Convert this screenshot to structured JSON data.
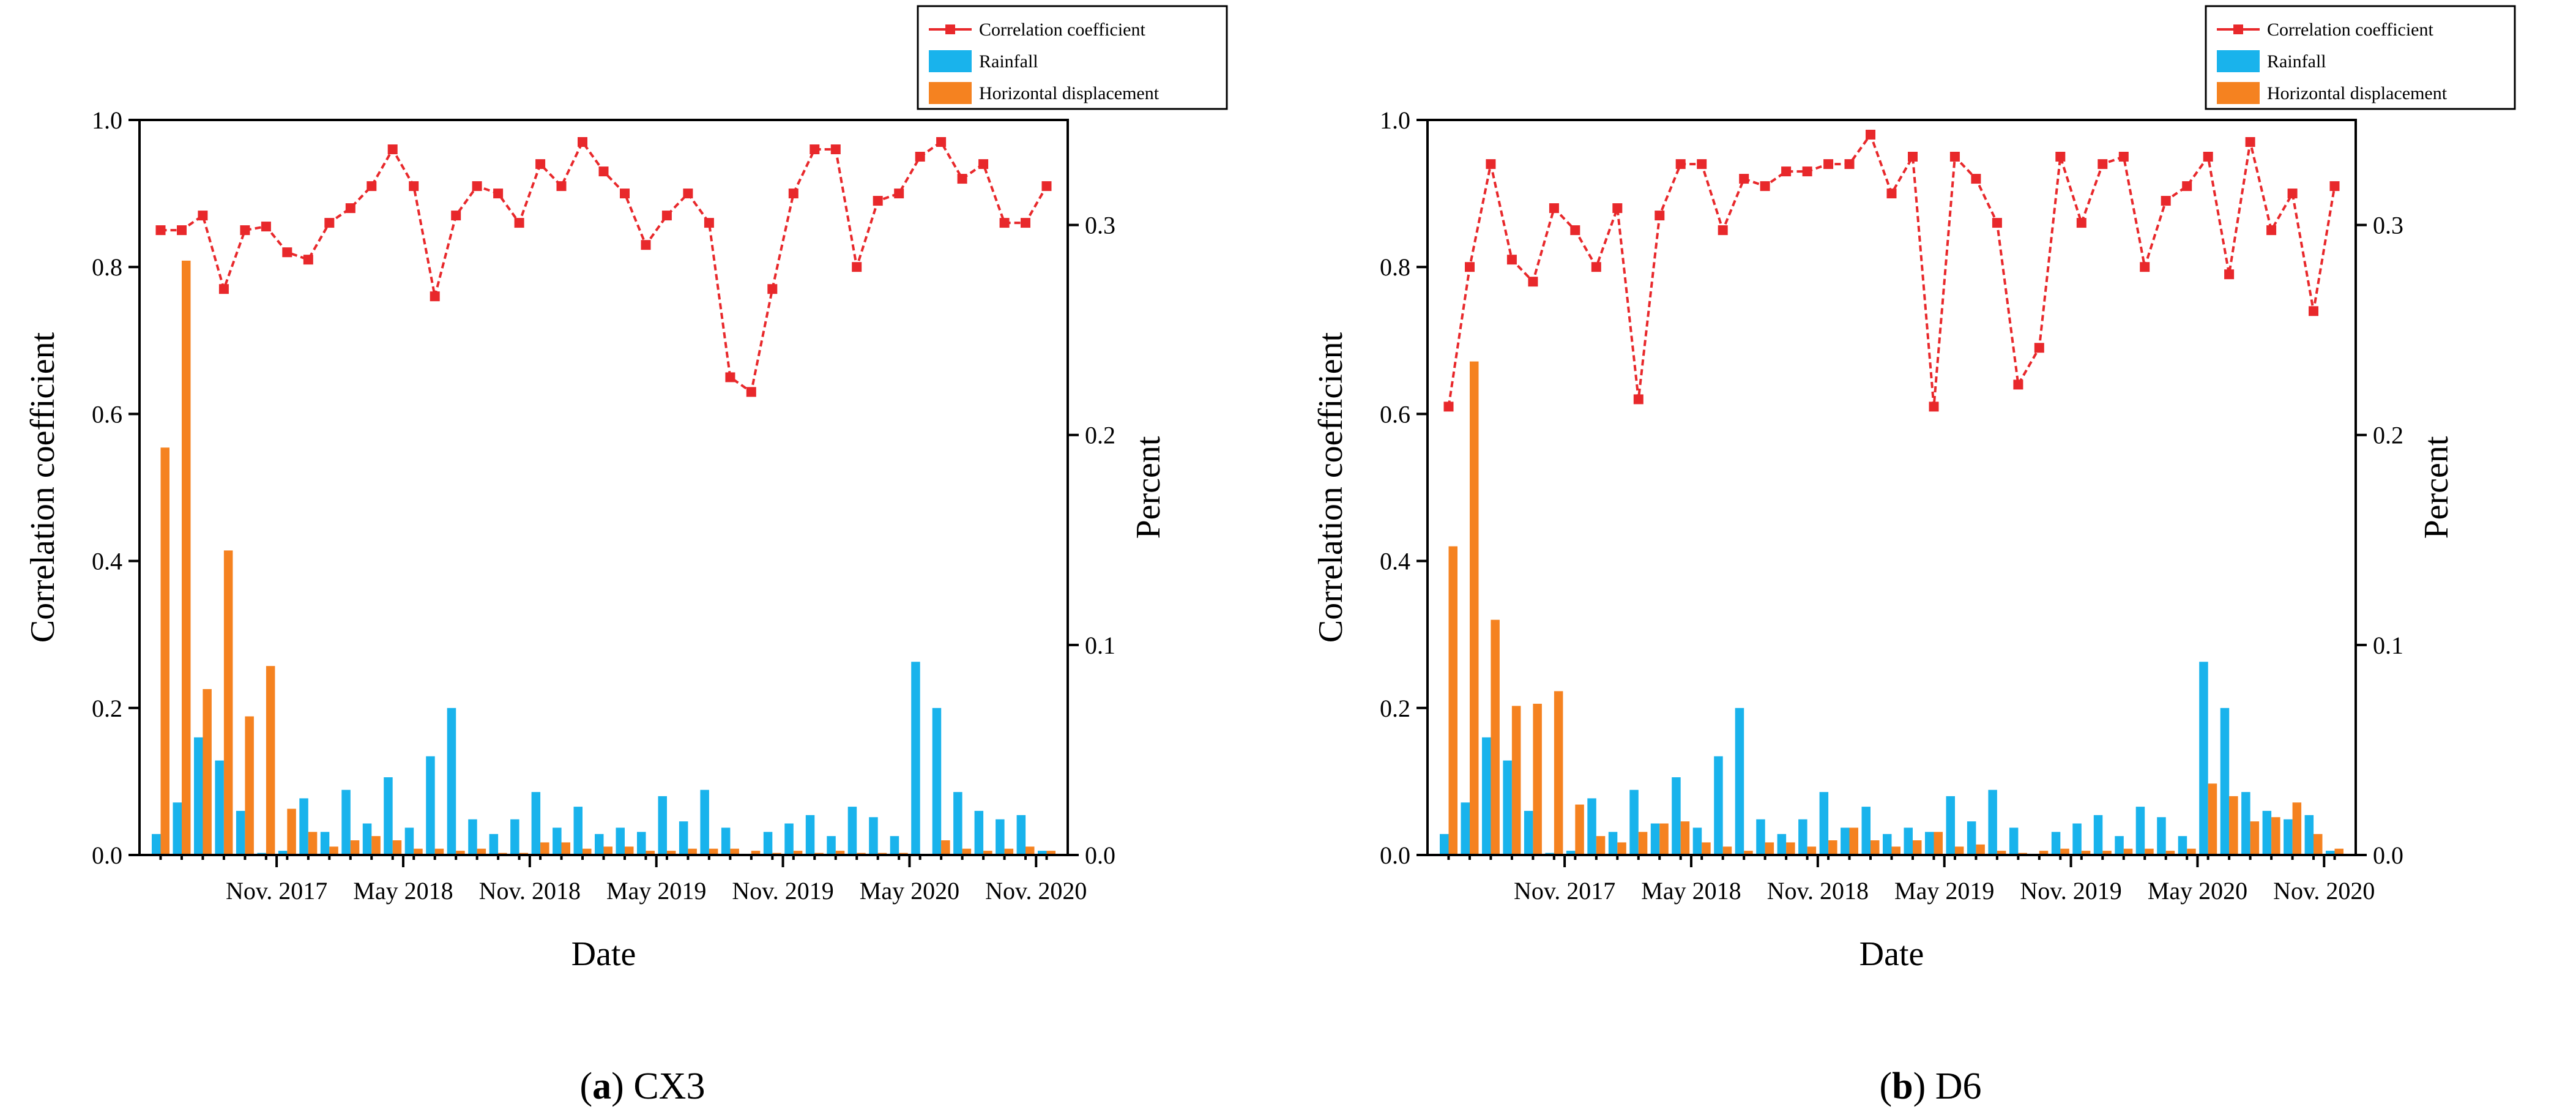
{
  "chart_data": [
    {
      "type": "bar",
      "caption": {
        "letter": "a",
        "label": "CX3"
      },
      "xlabel": "Date",
      "ylabel": "Correlation coefficient",
      "y2label": "Percent",
      "ylim": [
        0,
        1.0
      ],
      "y2lim": [
        0,
        0.35
      ],
      "yticks": [
        "0.0",
        "0.2",
        "0.4",
        "0.6",
        "0.8",
        "1.0"
      ],
      "y2ticks": [
        "0.0",
        "0.1",
        "0.2",
        "0.3"
      ],
      "xtick_labels": [
        {
          "label": "Nov. 2017",
          "index": 6
        },
        {
          "label": "May 2018",
          "index": 12
        },
        {
          "label": "Nov. 2018",
          "index": 18
        },
        {
          "label": "May 2019",
          "index": 24
        },
        {
          "label": "Nov. 2019",
          "index": 30
        },
        {
          "label": "May 2020",
          "index": 36
        },
        {
          "label": "Nov. 2020",
          "index": 42
        }
      ],
      "legend": {
        "position": "top-right",
        "entries": [
          "Correlation coefficient",
          "Rainfall",
          "Horizontal displacement"
        ]
      },
      "colors": {
        "correlation": "#e8282b",
        "rainfall": "#19b3ec",
        "displacement": "#f58220"
      },
      "series": [
        {
          "name": "Correlation coefficient",
          "kind": "line",
          "axis": "left",
          "values": [
            0.85,
            0.85,
            0.87,
            0.77,
            0.85,
            0.855,
            0.82,
            0.81,
            0.86,
            0.88,
            0.91,
            0.96,
            0.91,
            0.76,
            0.87,
            0.91,
            0.9,
            0.86,
            0.94,
            0.91,
            0.97,
            0.93,
            0.9,
            0.83,
            0.87,
            0.9,
            0.86,
            0.65,
            0.63,
            0.77,
            0.9,
            0.96,
            0.96,
            0.8,
            0.89,
            0.9,
            0.95,
            0.97,
            0.92,
            0.94,
            0.86,
            0.86,
            0.91
          ]
        },
        {
          "name": "Rainfall",
          "kind": "bar",
          "axis": "right",
          "values": [
            0.01,
            0.025,
            0.056,
            0.045,
            0.021,
            0.001,
            0.002,
            0.027,
            0.011,
            0.031,
            0.015,
            0.037,
            0.013,
            0.047,
            0.07,
            0.017,
            0.01,
            0.017,
            0.03,
            0.013,
            0.023,
            0.01,
            0.013,
            0.011,
            0.028,
            0.016,
            0.031,
            0.013,
            0.0,
            0.011,
            0.015,
            0.019,
            0.009,
            0.023,
            0.018,
            0.009,
            0.092,
            0.07,
            0.03,
            0.021,
            0.017,
            0.019,
            0.002
          ]
        },
        {
          "name": "Horizontal displacement",
          "kind": "bar",
          "axis": "right",
          "values": [
            0.194,
            0.283,
            0.079,
            0.145,
            0.066,
            0.09,
            0.022,
            0.011,
            0.004,
            0.007,
            0.009,
            0.007,
            0.003,
            0.003,
            0.002,
            0.003,
            0.001,
            0.001,
            0.006,
            0.006,
            0.003,
            0.004,
            0.004,
            0.002,
            0.002,
            0.003,
            0.003,
            0.003,
            0.002,
            0.001,
            0.002,
            0.001,
            0.002,
            0.001,
            0.001,
            0.001,
            0.0,
            0.007,
            0.003,
            0.002,
            0.003,
            0.004,
            0.002
          ]
        }
      ]
    },
    {
      "type": "bar",
      "caption": {
        "letter": "b",
        "label": "D6"
      },
      "xlabel": "Date",
      "ylabel": "Correlation coefficient",
      "y2label": "Percent",
      "ylim": [
        0,
        1.0
      ],
      "y2lim": [
        0,
        0.35
      ],
      "yticks": [
        "0.0",
        "0.2",
        "0.4",
        "0.6",
        "0.8",
        "1.0"
      ],
      "y2ticks": [
        "0.0",
        "0.1",
        "0.2",
        "0.3"
      ],
      "xtick_labels": [
        {
          "label": "Nov. 2017",
          "index": 6
        },
        {
          "label": "May 2018",
          "index": 12
        },
        {
          "label": "Nov. 2018",
          "index": 18
        },
        {
          "label": "May 2019",
          "index": 24
        },
        {
          "label": "Nov. 2019",
          "index": 30
        },
        {
          "label": "May 2020",
          "index": 36
        },
        {
          "label": "Nov. 2020",
          "index": 42
        }
      ],
      "legend": {
        "position": "top-right",
        "entries": [
          "Correlation coefficient",
          "Rainfall",
          "Horizontal displacement"
        ]
      },
      "colors": {
        "correlation": "#e8282b",
        "rainfall": "#19b3ec",
        "displacement": "#f58220"
      },
      "series": [
        {
          "name": "Correlation coefficient",
          "kind": "line",
          "axis": "left",
          "values": [
            0.61,
            0.8,
            0.94,
            0.81,
            0.78,
            0.88,
            0.85,
            0.8,
            0.88,
            0.62,
            0.87,
            0.94,
            0.94,
            0.85,
            0.92,
            0.91,
            0.93,
            0.93,
            0.94,
            0.94,
            0.98,
            0.9,
            0.95,
            0.61,
            0.95,
            0.92,
            0.86,
            0.64,
            0.69,
            0.95,
            0.86,
            0.94,
            0.95,
            0.8,
            0.89,
            0.91,
            0.95,
            0.79,
            0.97,
            0.85,
            0.9,
            0.74,
            0.91
          ]
        },
        {
          "name": "Rainfall",
          "kind": "bar",
          "axis": "right",
          "values": [
            0.01,
            0.025,
            0.056,
            0.045,
            0.021,
            0.001,
            0.002,
            0.027,
            0.011,
            0.031,
            0.015,
            0.037,
            0.013,
            0.047,
            0.07,
            0.017,
            0.01,
            0.017,
            0.03,
            0.013,
            0.023,
            0.01,
            0.013,
            0.011,
            0.028,
            0.016,
            0.031,
            0.013,
            0.0,
            0.011,
            0.015,
            0.019,
            0.009,
            0.023,
            0.018,
            0.009,
            0.092,
            0.07,
            0.03,
            0.021,
            0.017,
            0.019,
            0.002
          ]
        },
        {
          "name": "Horizontal displacement",
          "kind": "bar",
          "axis": "right",
          "values": [
            0.147,
            0.235,
            0.112,
            0.071,
            0.072,
            0.078,
            0.024,
            0.009,
            0.006,
            0.011,
            0.015,
            0.016,
            0.006,
            0.004,
            0.002,
            0.006,
            0.006,
            0.004,
            0.007,
            0.013,
            0.007,
            0.004,
            0.007,
            0.011,
            0.004,
            0.005,
            0.002,
            0.001,
            0.002,
            0.003,
            0.002,
            0.002,
            0.003,
            0.003,
            0.002,
            0.003,
            0.034,
            0.028,
            0.016,
            0.018,
            0.025,
            0.01,
            0.003
          ]
        }
      ]
    }
  ]
}
